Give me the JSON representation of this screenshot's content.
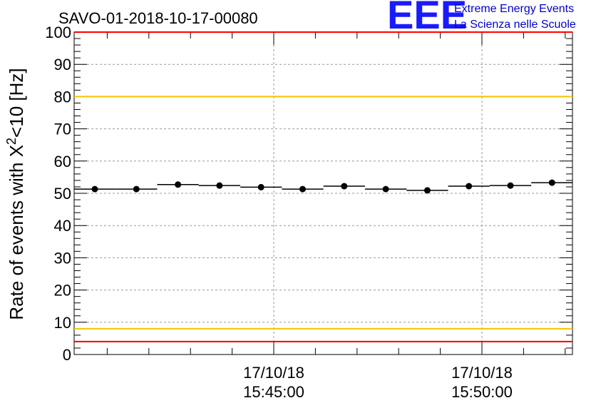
{
  "chart_data": {
    "type": "scatter",
    "title": "SAVO-01-2018-10-17-00080",
    "ylabel_main": "Rate of events with X",
    "ylabel_sup": "2",
    "ylabel_tail": "<10 [Hz]",
    "ylim": [
      0,
      100
    ],
    "y_ticks": [
      "0",
      "10",
      "20",
      "30",
      "40",
      "50",
      "60",
      "70",
      "80",
      "90",
      "100"
    ],
    "x_tick_labels": [
      {
        "date": "17/10/18",
        "time": "15:45:00"
      },
      {
        "date": "17/10/18",
        "time": "15:50:00"
      }
    ],
    "grid": true,
    "series": [
      {
        "values": [
          51.3,
          51.3,
          52.7,
          52.4,
          51.9,
          51.3,
          52.2,
          51.3,
          50.9,
          52.2,
          52.4,
          53.3
        ]
      }
    ],
    "reference_lines": [
      {
        "y": 100,
        "color": "#ff0000"
      },
      {
        "y": 80,
        "color": "#f5c400"
      },
      {
        "y": 8,
        "color": "#f5c400"
      },
      {
        "y": 4,
        "color": "#ff0000"
      }
    ]
  },
  "logo": {
    "mark": "EEE",
    "line1": "Extreme Energy Events",
    "line2": "La Scienza nelle Scuole",
    "color": "#1a1aff"
  }
}
